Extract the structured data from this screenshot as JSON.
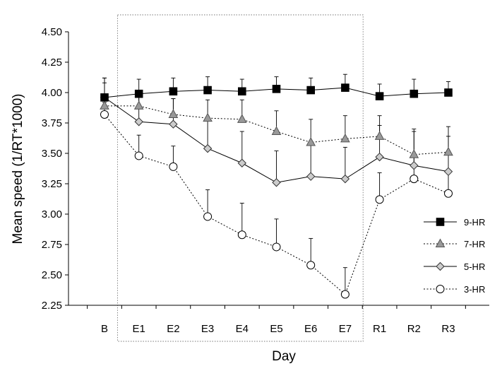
{
  "chart_data": {
    "type": "line",
    "xlabel": "Day",
    "ylabel": "Mean speed (1/RT*1000)",
    "categories": [
      "B",
      "E1",
      "E2",
      "E3",
      "E4",
      "E5",
      "E6",
      "E7",
      "R1",
      "R2",
      "R3"
    ],
    "ylim": [
      2.25,
      4.5
    ],
    "yticks": [
      "2.25",
      "2.50",
      "2.75",
      "3.00",
      "3.25",
      "3.50",
      "3.75",
      "4.00",
      "4.25",
      "4.50"
    ],
    "grid": false,
    "legend_position": "right",
    "highlight_range": [
      "E1",
      "E7"
    ],
    "series": [
      {
        "name": "9-HR",
        "marker": "square",
        "marker_fill": "#000000",
        "line_style": "solid",
        "values": [
          3.96,
          3.99,
          4.01,
          4.02,
          4.01,
          4.03,
          4.02,
          4.04,
          3.97,
          3.99,
          4.0
        ],
        "errors": [
          0.16,
          0.12,
          0.11,
          0.11,
          0.1,
          0.1,
          0.1,
          0.11,
          0.1,
          0.12,
          0.09
        ]
      },
      {
        "name": "7-HR",
        "marker": "triangle",
        "marker_fill": "#999999",
        "line_style": "dotted",
        "values": [
          3.89,
          3.89,
          3.82,
          3.79,
          3.78,
          3.68,
          3.59,
          3.62,
          3.64,
          3.49,
          3.51
        ],
        "errors": [
          0.19,
          0.13,
          0.13,
          0.15,
          0.16,
          0.17,
          0.19,
          0.19,
          0.17,
          0.21,
          0.21
        ]
      },
      {
        "name": "5-HR",
        "marker": "diamond",
        "marker_fill": "#cccccc",
        "line_style": "solid",
        "values": [
          3.96,
          3.76,
          3.74,
          3.54,
          3.42,
          3.26,
          3.31,
          3.29,
          3.47,
          3.4,
          3.35
        ],
        "errors": [
          0.16,
          0.2,
          0.21,
          0.23,
          0.26,
          0.26,
          0.26,
          0.26,
          0.26,
          0.28,
          0.29
        ]
      },
      {
        "name": "3-HR",
        "marker": "circle",
        "marker_fill": "#ffffff",
        "line_style": "dotted",
        "values": [
          3.82,
          3.48,
          3.39,
          2.98,
          2.83,
          2.73,
          2.58,
          2.34,
          3.12,
          3.29,
          3.17
        ],
        "errors": [
          0.1,
          0.17,
          0.17,
          0.22,
          0.26,
          0.23,
          0.22,
          0.22,
          0.22,
          0.18,
          0.18
        ]
      }
    ]
  }
}
